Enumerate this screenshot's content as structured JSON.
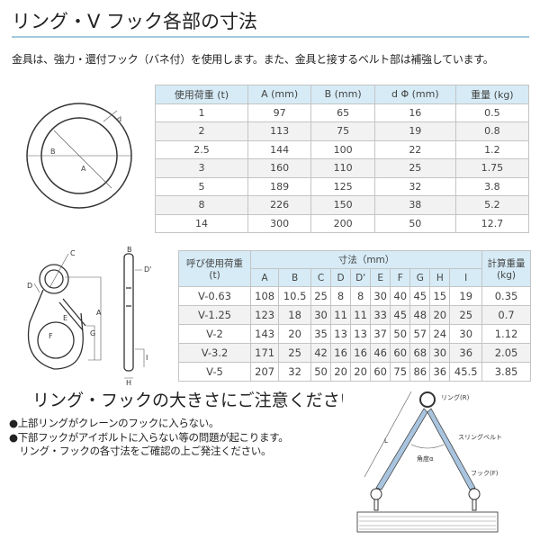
{
  "title": "リング・V フック各部の寸法",
  "intro": "金具は、強力・還付フック（バネ付）を使用します。また、金具と接するベルト部は補強しています。",
  "ring_table": {
    "headers": [
      "使用荷重 (t)",
      "A (mm)",
      "B (mm)",
      "d Φ (mm)",
      "重量 (kg)"
    ],
    "rows": [
      [
        "1",
        "97",
        "65",
        "16",
        "0.5"
      ],
      [
        "2",
        "113",
        "75",
        "19",
        "0.8"
      ],
      [
        "2.5",
        "144",
        "100",
        "22",
        "1.2"
      ],
      [
        "3",
        "160",
        "110",
        "25",
        "1.75"
      ],
      [
        "5",
        "189",
        "125",
        "32",
        "3.8"
      ],
      [
        "8",
        "226",
        "150",
        "38",
        "5.2"
      ],
      [
        "14",
        "300",
        "200",
        "50",
        "12.7"
      ]
    ]
  },
  "hook_table": {
    "load_header": "呼び使用荷重",
    "load_unit": "(t)",
    "dim_header": "寸法（mm）",
    "weight_header": "計算重量",
    "weight_unit": "(kg)",
    "dims": [
      "A",
      "B",
      "C",
      "D",
      "D'",
      "E",
      "F",
      "G",
      "H",
      "I"
    ],
    "rows": [
      [
        "V-0.63",
        "108",
        "10.5",
        "25",
        "8",
        "8",
        "30",
        "40",
        "45",
        "15",
        "19",
        "0.35"
      ],
      [
        "V-1.25",
        "123",
        "18",
        "30",
        "11",
        "11",
        "33",
        "45",
        "48",
        "20",
        "25",
        "0.7"
      ],
      [
        "V-2",
        "143",
        "20",
        "35",
        "13",
        "13",
        "37",
        "50",
        "57",
        "24",
        "30",
        "1.12"
      ],
      [
        "V-3.2",
        "171",
        "25",
        "42",
        "16",
        "16",
        "46",
        "60",
        "68",
        "30",
        "36",
        "2.05"
      ],
      [
        "V-5",
        "207",
        "32",
        "50",
        "20",
        "20",
        "60",
        "75",
        "86",
        "36",
        "45.5",
        "3.85"
      ]
    ]
  },
  "ring_labels": {
    "d": "d",
    "B": "B",
    "A": "A"
  },
  "hook_labels": {
    "C": "C",
    "D": "D",
    "E": "E",
    "F": "F",
    "G": "G",
    "A": "A",
    "B": "B",
    "D2": "D'",
    "H": "H",
    "I": "I"
  },
  "notice": {
    "title": "リング・フックの大きさにご注意ください",
    "lines": [
      "●上部リングがクレーンのフックに入らない。",
      "●下部フックがアイボルトに入らない等の問題が起こります。",
      "　リング・フックの各寸法をご確認の上ご発注ください。"
    ]
  },
  "sling_labels": {
    "ring": "リング(R)",
    "belt": "スリングベルト",
    "angle": "角度α",
    "hook": "フック(F)",
    "length": "L"
  },
  "colors": {
    "rule": "#9fcbdb",
    "header_bg": "#d6ebf6",
    "belt": "#a9c4de"
  }
}
